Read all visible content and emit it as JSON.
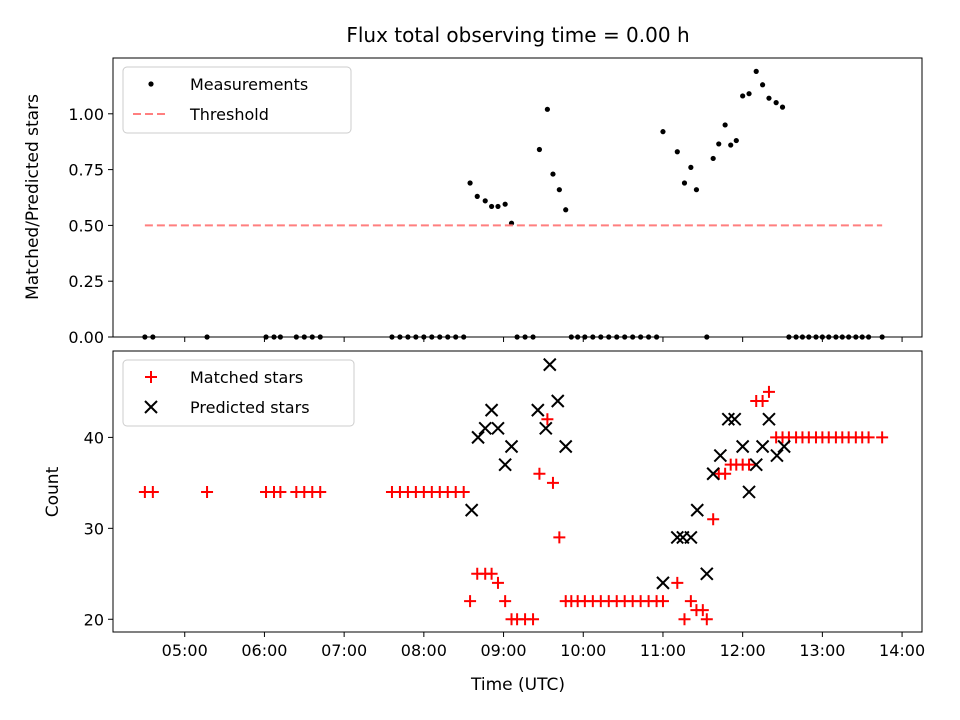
{
  "chart_data": [
    {
      "type": "scatter",
      "title": "Flux total observing time = 0.00 h",
      "xlabel": "",
      "ylabel": "Matched/Predicted stars",
      "xlim": [
        4.1,
        14.25
      ],
      "ylim": [
        0,
        1.25
      ],
      "yticks": [
        0.0,
        0.25,
        0.5,
        0.75,
        1.0
      ],
      "ytick_labels": [
        "0.00",
        "0.25",
        "0.50",
        "0.75",
        "1.00"
      ],
      "legend": {
        "placement": "upper-left",
        "entries": [
          "Measurements",
          "Threshold"
        ]
      },
      "series": [
        {
          "name": "Measurements",
          "color": "#000000",
          "points": [
            [
              4.5,
              0
            ],
            [
              4.6,
              0
            ],
            [
              5.28,
              0
            ],
            [
              6.02,
              0
            ],
            [
              6.12,
              0
            ],
            [
              6.2,
              0
            ],
            [
              6.4,
              0
            ],
            [
              6.5,
              0
            ],
            [
              6.6,
              0
            ],
            [
              6.7,
              0
            ],
            [
              7.6,
              0
            ],
            [
              7.7,
              0
            ],
            [
              7.8,
              0
            ],
            [
              7.9,
              0
            ],
            [
              8.0,
              0
            ],
            [
              8.1,
              0
            ],
            [
              8.2,
              0
            ],
            [
              8.3,
              0
            ],
            [
              8.4,
              0
            ],
            [
              8.5,
              0
            ],
            [
              8.58,
              0.69
            ],
            [
              8.67,
              0.63
            ],
            [
              8.77,
              0.61
            ],
            [
              8.85,
              0.585
            ],
            [
              8.93,
              0.585
            ],
            [
              9.02,
              0.595
            ],
            [
              9.1,
              0.51
            ],
            [
              9.17,
              0
            ],
            [
              9.27,
              0
            ],
            [
              9.37,
              0
            ],
            [
              9.45,
              0.84
            ],
            [
              9.55,
              1.02
            ],
            [
              9.62,
              0.73
            ],
            [
              9.7,
              0.66
            ],
            [
              9.78,
              0.57
            ],
            [
              9.85,
              0
            ],
            [
              9.93,
              0
            ],
            [
              10.02,
              0
            ],
            [
              10.12,
              0
            ],
            [
              10.22,
              0
            ],
            [
              10.32,
              0
            ],
            [
              10.42,
              0
            ],
            [
              10.52,
              0
            ],
            [
              10.62,
              0
            ],
            [
              10.72,
              0
            ],
            [
              10.82,
              0
            ],
            [
              10.92,
              0
            ],
            [
              11.0,
              0.92
            ],
            [
              11.18,
              0.83
            ],
            [
              11.27,
              0.69
            ],
            [
              11.35,
              0.76
            ],
            [
              11.42,
              0.66
            ],
            [
              11.55,
              0
            ],
            [
              11.63,
              0.8
            ],
            [
              11.7,
              0.865
            ],
            [
              11.78,
              0.95
            ],
            [
              11.85,
              0.86
            ],
            [
              11.92,
              0.88
            ],
            [
              12.0,
              1.08
            ],
            [
              12.08,
              1.09
            ],
            [
              12.17,
              1.19
            ],
            [
              12.25,
              1.13
            ],
            [
              12.33,
              1.07
            ],
            [
              12.42,
              1.05
            ],
            [
              12.5,
              1.03
            ],
            [
              12.58,
              0
            ],
            [
              12.67,
              0
            ],
            [
              12.75,
              0
            ],
            [
              12.83,
              0
            ],
            [
              12.92,
              0
            ],
            [
              13.0,
              0
            ],
            [
              13.08,
              0
            ],
            [
              13.17,
              0
            ],
            [
              13.25,
              0
            ],
            [
              13.33,
              0
            ],
            [
              13.42,
              0
            ],
            [
              13.5,
              0
            ],
            [
              13.58,
              0
            ],
            [
              13.75,
              0
            ]
          ]
        },
        {
          "name": "Threshold",
          "color": "#ff7f7f",
          "style": "dashed",
          "points": [
            [
              4.5,
              0.5
            ],
            [
              13.75,
              0.5
            ]
          ]
        }
      ]
    },
    {
      "type": "scatter",
      "title": "",
      "xlabel": "Time (UTC)",
      "ylabel": "Count",
      "xlim": [
        4.1,
        14.25
      ],
      "ylim": [
        18.6,
        49.5
      ],
      "yticks": [
        20,
        30,
        40
      ],
      "ytick_labels": [
        "20",
        "30",
        "40"
      ],
      "xticks": [
        5,
        6,
        7,
        8,
        9,
        10,
        11,
        12,
        13,
        14
      ],
      "xtick_labels": [
        "05:00",
        "06:00",
        "07:00",
        "08:00",
        "09:00",
        "10:00",
        "11:00",
        "12:00",
        "13:00",
        "14:00"
      ],
      "legend": {
        "placement": "upper-left",
        "entries": [
          "Matched stars",
          "Predicted stars"
        ]
      },
      "series": [
        {
          "name": "Matched stars",
          "color": "#ff0000",
          "marker": "+",
          "points": [
            [
              4.5,
              34
            ],
            [
              4.6,
              34
            ],
            [
              5.28,
              34
            ],
            [
              6.02,
              34
            ],
            [
              6.12,
              34
            ],
            [
              6.2,
              34
            ],
            [
              6.4,
              34
            ],
            [
              6.5,
              34
            ],
            [
              6.6,
              34
            ],
            [
              6.7,
              34
            ],
            [
              7.6,
              34
            ],
            [
              7.7,
              34
            ],
            [
              7.8,
              34
            ],
            [
              7.9,
              34
            ],
            [
              8.0,
              34
            ],
            [
              8.1,
              34
            ],
            [
              8.2,
              34
            ],
            [
              8.3,
              34
            ],
            [
              8.4,
              34
            ],
            [
              8.5,
              34
            ],
            [
              8.58,
              22
            ],
            [
              8.67,
              25
            ],
            [
              8.77,
              25
            ],
            [
              8.85,
              25
            ],
            [
              8.93,
              24
            ],
            [
              9.02,
              22
            ],
            [
              9.1,
              20
            ],
            [
              9.17,
              20
            ],
            [
              9.27,
              20
            ],
            [
              9.37,
              20
            ],
            [
              9.45,
              36
            ],
            [
              9.55,
              42
            ],
            [
              9.62,
              35
            ],
            [
              9.7,
              29
            ],
            [
              9.78,
              22
            ],
            [
              9.85,
              22
            ],
            [
              9.93,
              22
            ],
            [
              10.02,
              22
            ],
            [
              10.12,
              22
            ],
            [
              10.22,
              22
            ],
            [
              10.32,
              22
            ],
            [
              10.42,
              22
            ],
            [
              10.52,
              22
            ],
            [
              10.62,
              22
            ],
            [
              10.72,
              22
            ],
            [
              10.82,
              22
            ],
            [
              10.92,
              22
            ],
            [
              11.0,
              22
            ],
            [
              11.18,
              24
            ],
            [
              11.27,
              20
            ],
            [
              11.35,
              22
            ],
            [
              11.42,
              21
            ],
            [
              11.5,
              21
            ],
            [
              11.55,
              20
            ],
            [
              11.63,
              31
            ],
            [
              11.7,
              36
            ],
            [
              11.78,
              36
            ],
            [
              11.85,
              37
            ],
            [
              11.92,
              37
            ],
            [
              12.0,
              37
            ],
            [
              12.08,
              37
            ],
            [
              12.17,
              44
            ],
            [
              12.25,
              44
            ],
            [
              12.33,
              45
            ],
            [
              12.42,
              40
            ],
            [
              12.5,
              40
            ],
            [
              12.58,
              40
            ],
            [
              12.67,
              40
            ],
            [
              12.75,
              40
            ],
            [
              12.83,
              40
            ],
            [
              12.92,
              40
            ],
            [
              13.0,
              40
            ],
            [
              13.08,
              40
            ],
            [
              13.17,
              40
            ],
            [
              13.25,
              40
            ],
            [
              13.33,
              40
            ],
            [
              13.42,
              40
            ],
            [
              13.5,
              40
            ],
            [
              13.58,
              40
            ],
            [
              13.75,
              40
            ]
          ]
        },
        {
          "name": "Predicted stars",
          "color": "#000000",
          "marker": "x",
          "points": [
            [
              8.6,
              32
            ],
            [
              8.68,
              40
            ],
            [
              8.77,
              41
            ],
            [
              8.85,
              43
            ],
            [
              8.93,
              41
            ],
            [
              9.02,
              37
            ],
            [
              9.1,
              39
            ],
            [
              9.43,
              43
            ],
            [
              9.53,
              41
            ],
            [
              9.58,
              48
            ],
            [
              9.68,
              44
            ],
            [
              9.78,
              39
            ],
            [
              11.0,
              24
            ],
            [
              11.18,
              29
            ],
            [
              11.25,
              29
            ],
            [
              11.35,
              29
            ],
            [
              11.43,
              32
            ],
            [
              11.55,
              25
            ],
            [
              11.63,
              36
            ],
            [
              11.72,
              38
            ],
            [
              11.82,
              42
            ],
            [
              11.9,
              42
            ],
            [
              12.0,
              39
            ],
            [
              12.08,
              34
            ],
            [
              12.17,
              37
            ],
            [
              12.25,
              39
            ],
            [
              12.33,
              42
            ],
            [
              12.43,
              38
            ],
            [
              12.52,
              39
            ]
          ]
        }
      ]
    }
  ]
}
